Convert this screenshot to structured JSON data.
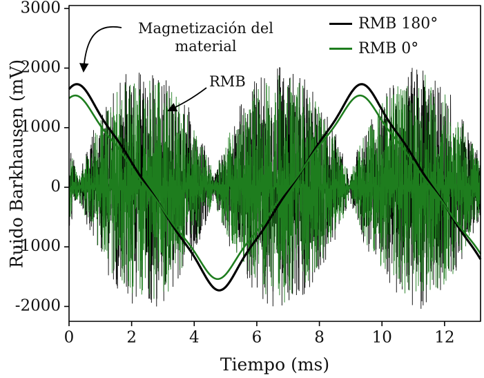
{
  "chart_data": {
    "type": "line",
    "title": "",
    "xlabel": "Tiempo (ms)",
    "ylabel": "Ruido Barkhausen (mV)",
    "xlim": [
      0,
      13.15
    ],
    "ylim": [
      -2250,
      3050
    ],
    "xticks": [
      0,
      2,
      4,
      6,
      8,
      10,
      12
    ],
    "yticks": [
      3000,
      2000,
      1000,
      0,
      -1000,
      -2000
    ],
    "grid": false,
    "legend": {
      "position": "top-right",
      "items": [
        {
          "label": "RMB 180°",
          "color": "#000000"
        },
        {
          "label": "RMB 0°",
          "color": "#1e7d1e"
        }
      ]
    },
    "annotations": [
      {
        "text": "Magnetización del material",
        "points_to": "black magnetization curve at t≈0.3 ms, ≈1700 mV"
      },
      {
        "text": "RMB",
        "points_to": "noise burst at t≈3 ms, ≈1200 mV"
      }
    ],
    "magnetization_series": [
      {
        "name": "RMB 180°",
        "color": "#000000",
        "shape": "rounded-triangle",
        "amplitude_mV": 1730,
        "period_ms": 9.1,
        "peak_time_ms": 0.25,
        "line_width": 3.2
      },
      {
        "name": "RMB 0°",
        "color": "#1e7d1e",
        "shape": "rounded-triangle",
        "amplitude_mV": 1540,
        "period_ms": 9.1,
        "peak_time_ms": 0.2,
        "line_width": 2.6
      }
    ],
    "noise_series": [
      {
        "name": "RMB 180°",
        "color": "#000000",
        "peak_mV": 2050,
        "seed": 7
      },
      {
        "name": "RMB 0°",
        "color": "#1e7d1e",
        "peak_mV": 1900,
        "seed": 13
      }
    ],
    "noise_envelope": {
      "quiet_time_ms": 0.3,
      "half_period_ms": 4.33,
      "exponent": 0.8,
      "floor": 0.06
    }
  }
}
